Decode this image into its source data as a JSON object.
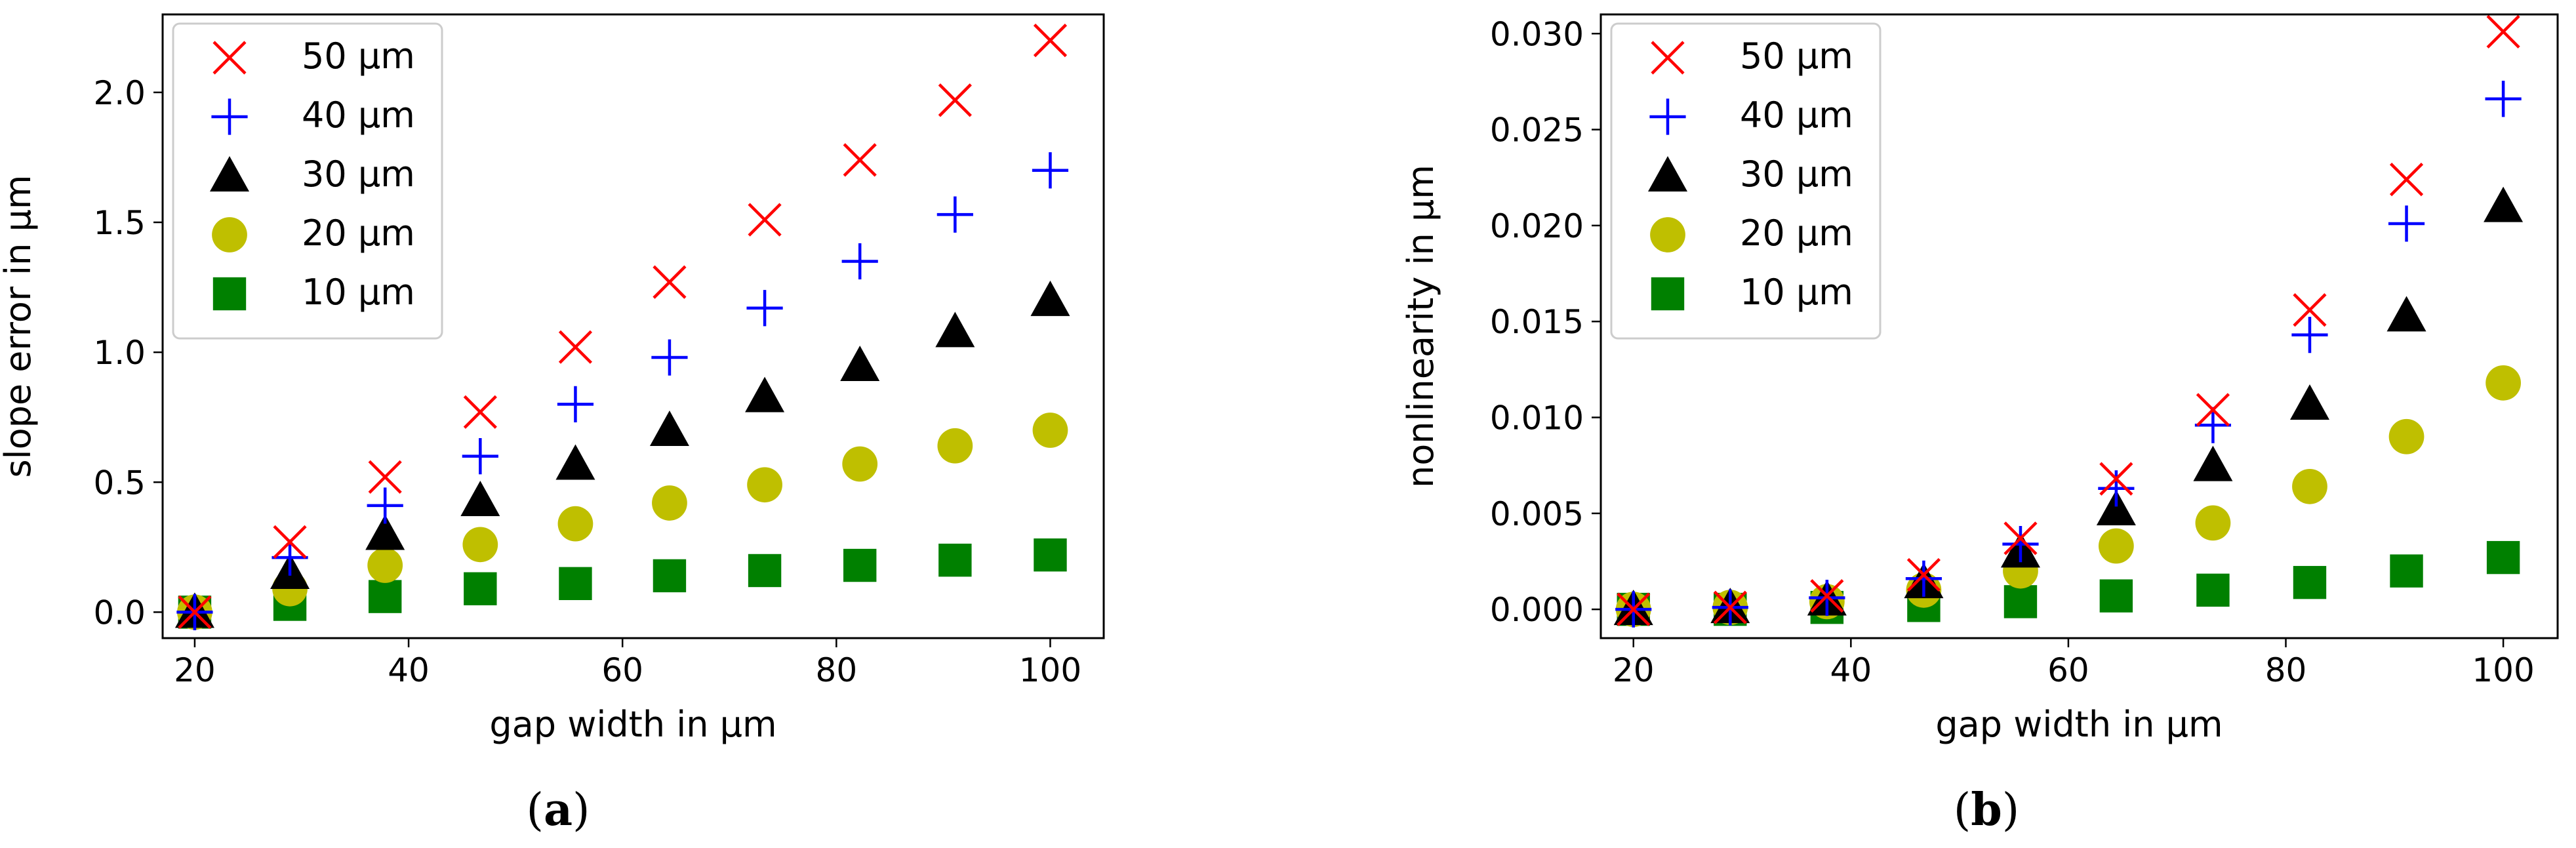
{
  "chart_data": [
    {
      "type": "scatter",
      "panel_label": "a",
      "xlabel": "gap width in µm",
      "ylabel": "slope error in µm",
      "xlim": [
        17,
        105
      ],
      "ylim": [
        -0.1,
        2.3
      ],
      "xticks": [
        20,
        40,
        60,
        80,
        100
      ],
      "yticks": [
        0.0,
        0.5,
        1.0,
        1.5,
        2.0
      ],
      "ytick_labels": [
        "0.0",
        "0.5",
        "1.0",
        "1.5",
        "2.0"
      ],
      "legend_position": "upper-left",
      "x": [
        20,
        28.9,
        37.8,
        46.7,
        55.6,
        64.4,
        73.3,
        82.2,
        91.1,
        100
      ],
      "series": [
        {
          "name": "50 µm",
          "marker": "x",
          "color": "#ff0000",
          "values": [
            0.0,
            0.27,
            0.52,
            0.77,
            1.02,
            1.27,
            1.51,
            1.74,
            1.97,
            2.2
          ]
        },
        {
          "name": "40 µm",
          "marker": "plus",
          "color": "#0000ff",
          "values": [
            0.0,
            0.21,
            0.41,
            0.6,
            0.8,
            0.98,
            1.17,
            1.35,
            1.53,
            1.7
          ]
        },
        {
          "name": "30 µm",
          "marker": "triangle",
          "color": "#000000",
          "values": [
            0.0,
            0.15,
            0.3,
            0.43,
            0.57,
            0.7,
            0.83,
            0.95,
            1.08,
            1.2
          ]
        },
        {
          "name": "20 µm",
          "marker": "circle",
          "color": "#bfbf00",
          "values": [
            0.0,
            0.09,
            0.18,
            0.26,
            0.34,
            0.42,
            0.49,
            0.57,
            0.64,
            0.7
          ]
        },
        {
          "name": "10 µm",
          "marker": "square",
          "color": "#008000",
          "values": [
            0.0,
            0.03,
            0.06,
            0.09,
            0.11,
            0.14,
            0.16,
            0.18,
            0.2,
            0.22
          ]
        }
      ]
    },
    {
      "type": "scatter",
      "panel_label": "b",
      "xlabel": "gap width in µm",
      "ylabel": "nonlinearity in µm",
      "xlim": [
        17,
        105
      ],
      "ylim": [
        -0.0015,
        0.031
      ],
      "xticks": [
        20,
        40,
        60,
        80,
        100
      ],
      "yticks": [
        0.0,
        0.005,
        0.01,
        0.015,
        0.02,
        0.025,
        0.03
      ],
      "ytick_labels": [
        "0.000",
        "0.005",
        "0.010",
        "0.015",
        "0.020",
        "0.025",
        "0.030"
      ],
      "legend_position": "upper-left",
      "x": [
        20,
        28.9,
        37.8,
        46.7,
        55.6,
        64.4,
        73.3,
        82.2,
        91.1,
        100
      ],
      "series": [
        {
          "name": "50 µm",
          "marker": "x",
          "color": "#ff0000",
          "values": [
            0.0,
            0.0001,
            0.0007,
            0.0018,
            0.0037,
            0.0068,
            0.0104,
            0.0156,
            0.0224,
            0.0301
          ]
        },
        {
          "name": "40 µm",
          "marker": "plus",
          "color": "#0000ff",
          "values": [
            0.0,
            0.0001,
            0.0006,
            0.0016,
            0.0034,
            0.0063,
            0.0096,
            0.0143,
            0.0201,
            0.0266
          ]
        },
        {
          "name": "30 µm",
          "marker": "triangle",
          "color": "#000000",
          "values": [
            0.0,
            0.0001,
            0.0005,
            0.0014,
            0.003,
            0.0052,
            0.0075,
            0.0107,
            0.0153,
            0.021
          ]
        },
        {
          "name": "20 µm",
          "marker": "circle",
          "color": "#bfbf00",
          "values": [
            0.0,
            0.0001,
            0.0004,
            0.001,
            0.002,
            0.0033,
            0.0045,
            0.0064,
            0.009,
            0.0118
          ]
        },
        {
          "name": "10 µm",
          "marker": "square",
          "color": "#008000",
          "values": [
            0.0,
            0.0,
            0.0001,
            0.0002,
            0.0004,
            0.0007,
            0.001,
            0.0014,
            0.002,
            0.0027
          ]
        }
      ]
    }
  ]
}
